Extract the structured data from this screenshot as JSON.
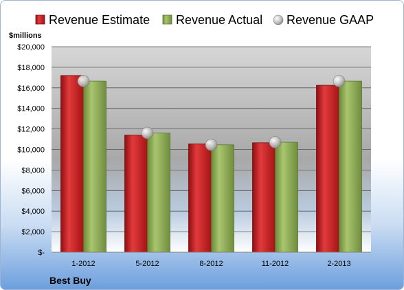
{
  "chart_data": {
    "type": "bar",
    "title": "",
    "unit_label": "$millions",
    "company": "Best Buy",
    "categories": [
      "1-2012",
      "5-2012",
      "8-2012",
      "11-2012",
      "2-2013"
    ],
    "series": [
      {
        "name": "Revenue Estimate",
        "kind": "bar",
        "color": "#d42426",
        "values": [
          17200,
          11400,
          10550,
          10650,
          16250
        ]
      },
      {
        "name": "Revenue Actual",
        "kind": "bar",
        "color": "#8fae5a",
        "values": [
          16650,
          11600,
          10450,
          10700,
          16650
        ]
      },
      {
        "name": "Revenue GAAP",
        "kind": "marker",
        "color": "#c8c8c8",
        "values": [
          16650,
          11600,
          10450,
          10700,
          16650
        ]
      }
    ],
    "y_ticks": [
      "$-",
      "$2,000",
      "$4,000",
      "$6,000",
      "$8,000",
      "$10,000",
      "$12,000",
      "$14,000",
      "$16,000",
      "$18,000",
      "$20,000"
    ],
    "ylim": [
      0,
      20000
    ],
    "grid": true,
    "legend_position": "top"
  }
}
